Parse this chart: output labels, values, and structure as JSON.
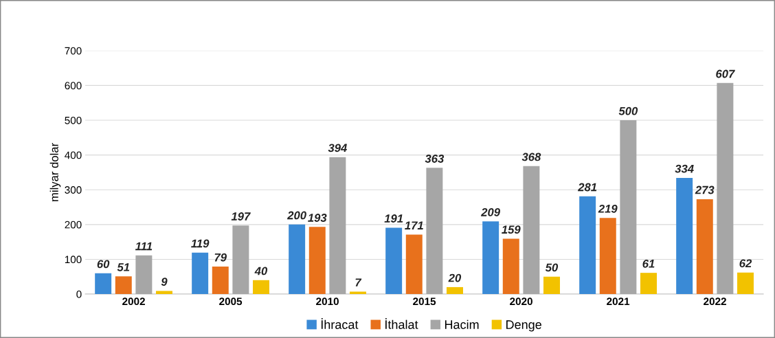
{
  "chart_data": {
    "type": "bar",
    "ylabel": "milyar dolar",
    "categories": [
      "2002",
      "2005",
      "2010",
      "2015",
      "2020",
      "2021",
      "2022"
    ],
    "series": [
      {
        "name": "İhracat",
        "color": "#3a8ad6",
        "values": [
          60,
          119,
          200,
          191,
          209,
          281,
          334
        ]
      },
      {
        "name": "İthalat",
        "color": "#e8711c",
        "values": [
          51,
          79,
          193,
          171,
          159,
          219,
          273
        ]
      },
      {
        "name": "Hacim",
        "color": "#a6a6a6",
        "values": [
          111,
          197,
          394,
          363,
          368,
          500,
          607
        ]
      },
      {
        "name": "Denge",
        "color": "#f2c200",
        "values": [
          9,
          40,
          7,
          20,
          50,
          61,
          62
        ]
      }
    ],
    "ylim": [
      0,
      700
    ],
    "yticks": [
      0,
      100,
      200,
      300,
      400,
      500,
      600,
      700
    ],
    "grid": "y",
    "legend": "bottom",
    "data_labels": true
  }
}
